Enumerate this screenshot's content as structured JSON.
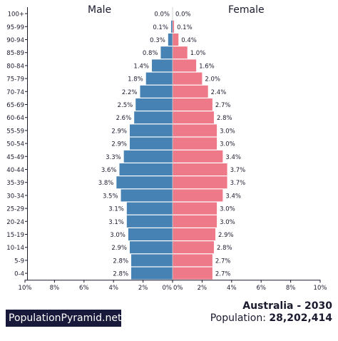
{
  "chart_data": {
    "type": "bar",
    "orientation": "horizontal-pyramid",
    "categories": [
      "100+",
      "95-99",
      "90-94",
      "85-89",
      "80-84",
      "75-79",
      "70-74",
      "65-69",
      "60-64",
      "55-59",
      "50-54",
      "45-49",
      "40-44",
      "35-39",
      "30-34",
      "25-29",
      "20-24",
      "15-19",
      "10-14",
      "5-9",
      "0-4"
    ],
    "series": [
      {
        "name": "Male",
        "color": "#4682b4",
        "values": [
          0.0,
          0.1,
          0.3,
          0.8,
          1.4,
          1.8,
          2.2,
          2.5,
          2.6,
          2.9,
          2.9,
          3.3,
          3.6,
          3.8,
          3.5,
          3.1,
          3.1,
          3.0,
          2.9,
          2.8,
          2.8
        ],
        "labels": [
          "0.0%",
          "0.1%",
          "0.3%",
          "0.8%",
          "1.4%",
          "1.8%",
          "2.2%",
          "2.5%",
          "2.6%",
          "2.9%",
          "2.9%",
          "3.3%",
          "3.6%",
          "3.8%",
          "3.5%",
          "3.1%",
          "3.1%",
          "3.0%",
          "2.9%",
          "2.8%",
          "2.8%"
        ]
      },
      {
        "name": "Female",
        "color": "#ee7989",
        "values": [
          0.0,
          0.1,
          0.4,
          1.0,
          1.6,
          2.0,
          2.4,
          2.7,
          2.8,
          3.0,
          3.0,
          3.4,
          3.7,
          3.7,
          3.4,
          3.0,
          3.0,
          2.9,
          2.8,
          2.7,
          2.7
        ],
        "labels": [
          "0.0%",
          "0.1%",
          "0.4%",
          "1.0%",
          "1.6%",
          "2.0%",
          "2.4%",
          "2.7%",
          "2.8%",
          "3.0%",
          "3.0%",
          "3.4%",
          "3.7%",
          "3.7%",
          "3.4%",
          "3.0%",
          "3.0%",
          "2.9%",
          "2.8%",
          "2.7%",
          "2.7%"
        ]
      }
    ],
    "xlim": [
      0,
      10
    ],
    "x_ticks_left": [
      "10%",
      "8%",
      "6%",
      "4%",
      "2%",
      "0%"
    ],
    "x_ticks_right": [
      "0%",
      "2%",
      "4%",
      "6%",
      "8%",
      "10%"
    ],
    "grid": false
  },
  "headers": {
    "male": "Male",
    "female": "Female"
  },
  "brand": "PopulationPyramid.net",
  "country": "Australia - 2030",
  "population_label": "Population:",
  "population_value": "28,202,414"
}
